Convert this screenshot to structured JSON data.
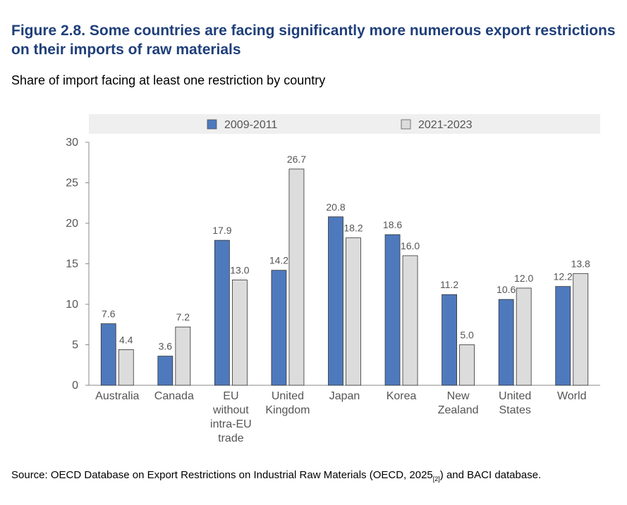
{
  "figure": {
    "title": "Figure 2.8. Some countries are facing significantly more numerous export restrictions on their imports of raw materials",
    "subtitle": "Share of import facing at least one restriction by country"
  },
  "source": {
    "prefix": "Source: OECD Database on Export Restrictions on Industrial Raw Materials (OECD, 2025",
    "ref": "[2]",
    "suffix": ") and BACI database."
  },
  "colors": {
    "series1": "#4e79bd",
    "series2": "#dcdcdc",
    "legend_bg": "#efefef",
    "axis": "#888888",
    "text": "#555555"
  },
  "chart_data": {
    "type": "bar",
    "title": "",
    "xlabel": "",
    "ylabel": "",
    "ylim": [
      0,
      30
    ],
    "yticks": [
      0,
      5,
      10,
      15,
      20,
      25,
      30
    ],
    "grid": false,
    "legend_position": "top",
    "categories": [
      [
        "Australia"
      ],
      [
        "Canada"
      ],
      [
        "EU",
        "without",
        "intra-EU",
        "trade"
      ],
      [
        "United",
        "Kingdom"
      ],
      [
        "Japan"
      ],
      [
        "Korea"
      ],
      [
        "New",
        "Zealand"
      ],
      [
        "United",
        "States"
      ],
      [
        "World"
      ]
    ],
    "series": [
      {
        "name": "2009-2011",
        "values": [
          7.6,
          3.6,
          17.9,
          14.2,
          20.8,
          18.6,
          11.2,
          10.6,
          12.2
        ]
      },
      {
        "name": "2021-2023",
        "values": [
          4.4,
          7.2,
          13.0,
          26.7,
          18.2,
          16.0,
          5.0,
          12.0,
          13.8
        ]
      }
    ]
  }
}
